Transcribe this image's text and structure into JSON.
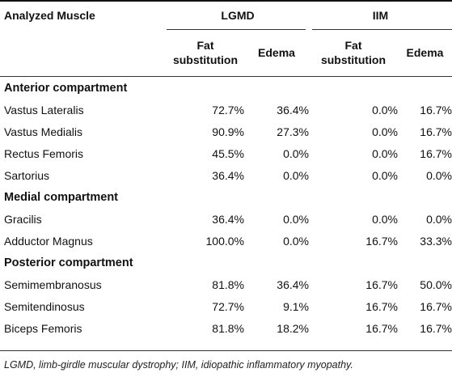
{
  "header": {
    "col_muscle": "Analyzed Muscle",
    "group_lgmd": "LGMD",
    "group_iim": "IIM",
    "lgmd_fat_line1": "Fat",
    "lgmd_fat_line2": "substitution",
    "lgmd_edema": "Edema",
    "iim_fat_line1": "Fat",
    "iim_fat_line2": "substitution",
    "iim_edema": "Edema"
  },
  "sections": [
    {
      "title": "Anterior compartment",
      "rows": [
        {
          "muscle": "Vastus Lateralis",
          "lgmd_fat": "72.7%",
          "lgmd_edema": "36.4%",
          "iim_fat": "0.0%",
          "iim_edema": "16.7%"
        },
        {
          "muscle": "Vastus Medialis",
          "lgmd_fat": "90.9%",
          "lgmd_edema": "27.3%",
          "iim_fat": "0.0%",
          "iim_edema": "16.7%"
        },
        {
          "muscle": "Rectus Femoris",
          "lgmd_fat": "45.5%",
          "lgmd_edema": "0.0%",
          "iim_fat": "0.0%",
          "iim_edema": "16.7%"
        },
        {
          "muscle": "Sartorius",
          "lgmd_fat": "36.4%",
          "lgmd_edema": "0.0%",
          "iim_fat": "0.0%",
          "iim_edema": "0.0%"
        }
      ]
    },
    {
      "title": "Medial compartment",
      "rows": [
        {
          "muscle": "Gracilis",
          "lgmd_fat": "36.4%",
          "lgmd_edema": "0.0%",
          "iim_fat": "0.0%",
          "iim_edema": "0.0%"
        },
        {
          "muscle": "Adductor Magnus",
          "lgmd_fat": "100.0%",
          "lgmd_edema": "0.0%",
          "iim_fat": "16.7%",
          "iim_edema": "33.3%"
        }
      ]
    },
    {
      "title": "Posterior compartment",
      "rows": [
        {
          "muscle": "Semimembranosus",
          "lgmd_fat": "81.8%",
          "lgmd_edema": "36.4%",
          "iim_fat": "16.7%",
          "iim_edema": "50.0%"
        },
        {
          "muscle": "Semitendinosus",
          "lgmd_fat": "72.7%",
          "lgmd_edema": "9.1%",
          "iim_fat": "16.7%",
          "iim_edema": "16.7%"
        },
        {
          "muscle": "Biceps Femoris",
          "lgmd_fat": "81.8%",
          "lgmd_edema": "18.2%",
          "iim_fat": "16.7%",
          "iim_edema": "16.7%"
        }
      ]
    }
  ],
  "footnote": "LGMD, limb-girdle muscular dystrophy; IIM, idiopathic inflammatory myopathy."
}
